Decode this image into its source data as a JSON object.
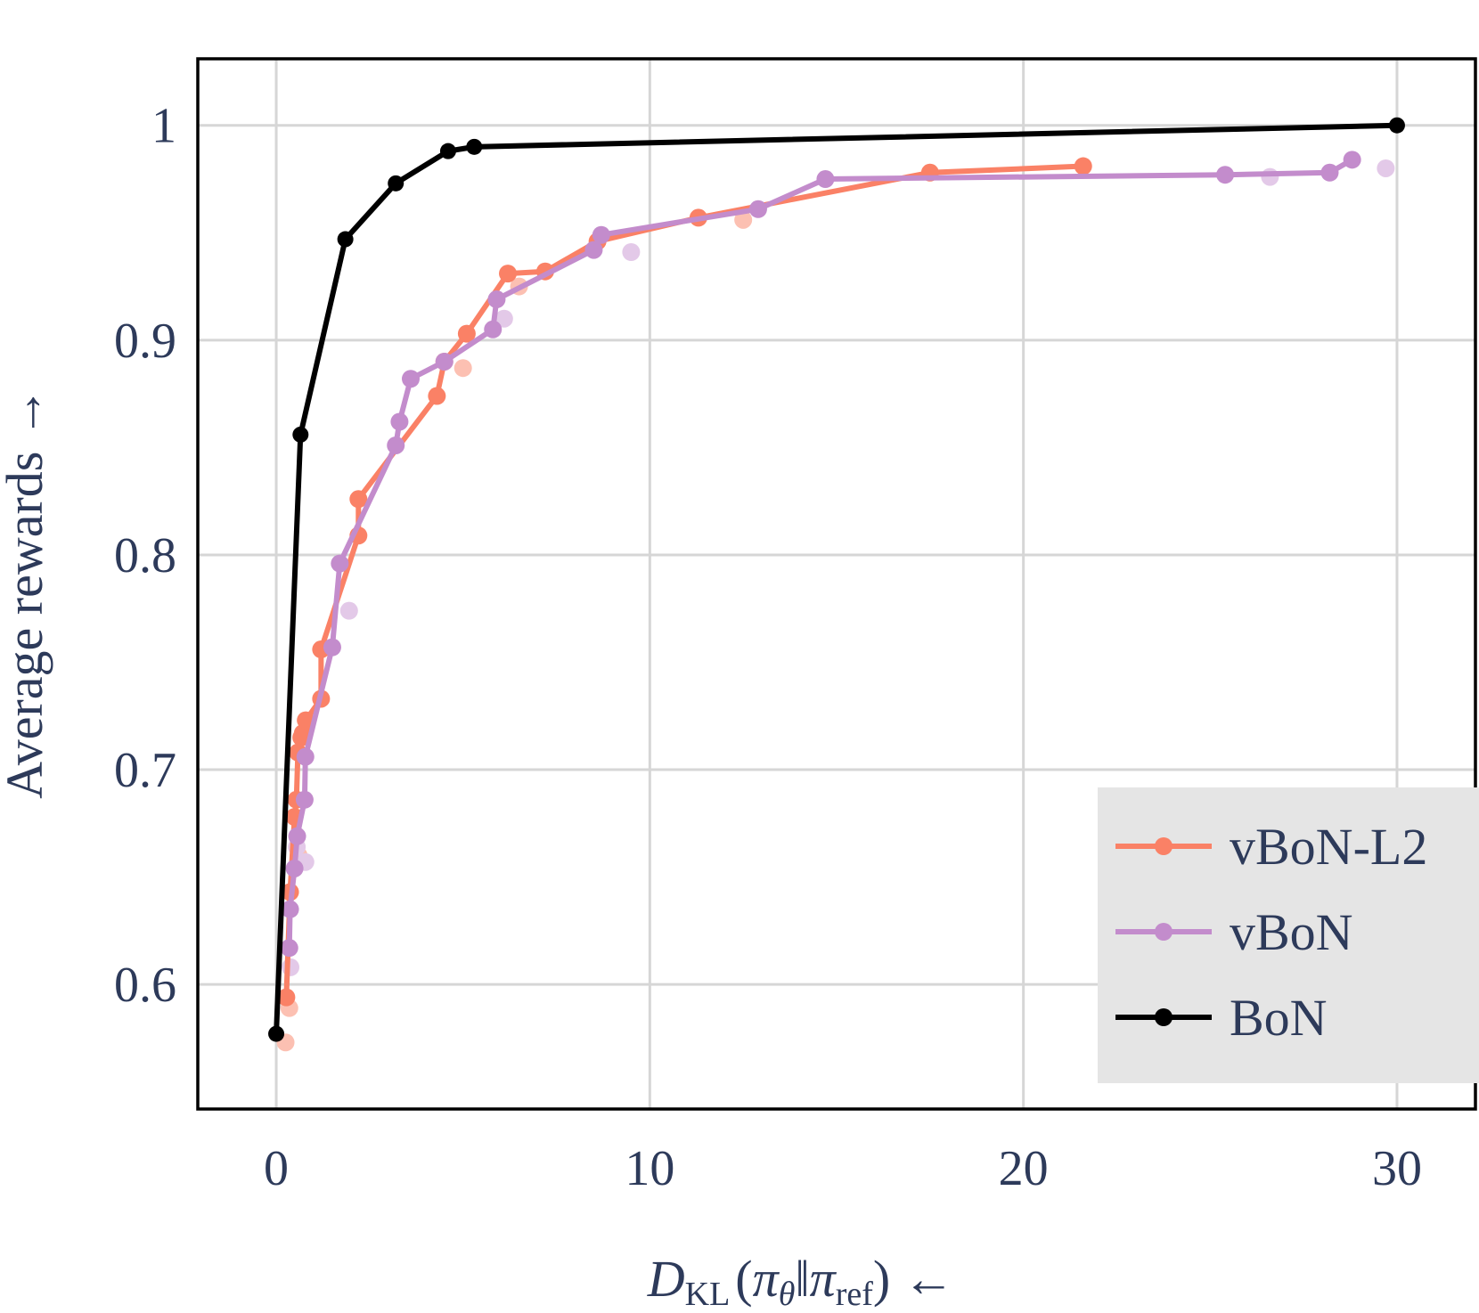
{
  "chart_data": {
    "type": "line",
    "title": "",
    "xlabel": {
      "main": "D",
      "sub": "KL",
      "open": "(",
      "pi1": "π",
      "sub1": "θ",
      "bars": "‖",
      "pi2": "π",
      "sub2": "ref",
      "close": ")",
      "arrow": "←"
    },
    "ylabel": "Average rewards →",
    "xlim": [
      -2.1,
      32.1
    ],
    "ylim": [
      0.542,
      1.031
    ],
    "xticks": [
      0,
      10,
      20,
      30
    ],
    "xtick_labels": [
      "0",
      "10",
      "20",
      "30"
    ],
    "yticks": [
      0.6,
      0.7,
      0.8,
      0.9,
      1.0
    ],
    "ytick_labels": [
      "0.6",
      "0.7",
      "0.8",
      "0.9",
      "1"
    ],
    "grid": true,
    "legend_position": "bottom-right",
    "series": [
      {
        "name": "vBoN-L2",
        "color": "#fa8166",
        "line": true,
        "x": [
          0.27,
          0.37,
          0.49,
          0.54,
          0.58,
          0.67,
          0.71,
          0.79,
          1.2,
          1.2,
          2.2,
          2.2,
          4.3,
          4.5,
          5.1,
          6.2,
          7.2,
          8.6,
          11.3,
          17.5,
          21.6
        ],
        "y": [
          0.594,
          0.643,
          0.678,
          0.686,
          0.708,
          0.715,
          0.717,
          0.723,
          0.733,
          0.756,
          0.809,
          0.826,
          0.874,
          0.89,
          0.903,
          0.931,
          0.932,
          0.946,
          0.957,
          0.978,
          0.981
        ]
      },
      {
        "name": "vBoN-L2 (faded)",
        "color": "#fcc0b2",
        "line": false,
        "x": [
          0.25,
          0.35,
          0.6,
          5.0,
          6.5,
          12.5
        ],
        "y": [
          0.573,
          0.589,
          0.66,
          0.887,
          0.925,
          0.956
        ]
      },
      {
        "name": "vBoN",
        "color": "#c38ccc",
        "line": true,
        "x": [
          0.35,
          0.37,
          0.49,
          0.56,
          0.76,
          0.78,
          1.5,
          1.7,
          3.2,
          3.3,
          3.6,
          4.5,
          5.8,
          5.9,
          8.5,
          8.7,
          12.9,
          14.7,
          25.4,
          28.2,
          28.8
        ],
        "y": [
          0.617,
          0.635,
          0.654,
          0.669,
          0.686,
          0.706,
          0.757,
          0.796,
          0.851,
          0.862,
          0.882,
          0.89,
          0.905,
          0.919,
          0.942,
          0.949,
          0.961,
          0.975,
          0.977,
          0.978,
          0.984
        ]
      },
      {
        "name": "vBoN (faded)",
        "color": "#e3c9e8",
        "line": false,
        "x": [
          0.38,
          0.55,
          0.78,
          1.95,
          6.1,
          9.5,
          26.6,
          29.7
        ],
        "y": [
          0.608,
          0.664,
          0.657,
          0.774,
          0.91,
          0.941,
          0.976,
          0.98
        ]
      },
      {
        "name": "BoN",
        "color": "#000000",
        "line": true,
        "x": [
          0.0,
          0.65,
          1.85,
          3.2,
          4.6,
          5.3,
          30.0
        ],
        "y": [
          0.577,
          0.856,
          0.947,
          0.973,
          0.988,
          0.99,
          1.0
        ]
      }
    ],
    "legend": [
      {
        "label": "vBoN-L2",
        "color": "#fa8166"
      },
      {
        "label": "vBoN",
        "color": "#c38ccc"
      },
      {
        "label": "BoN",
        "color": "#000000"
      }
    ]
  }
}
